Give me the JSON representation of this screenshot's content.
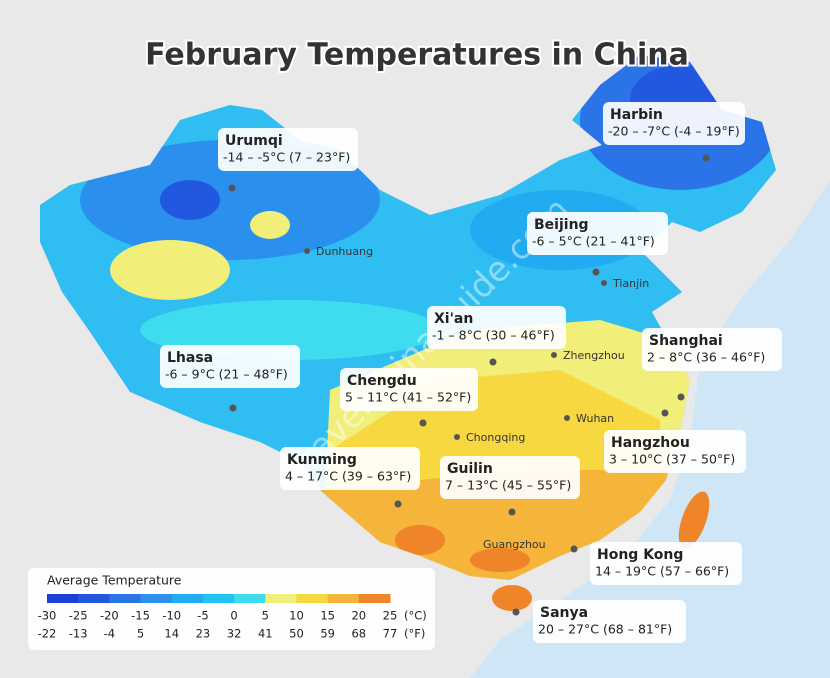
{
  "title": "February Temperatures in China",
  "watermark": "TravelChinaGuide.com",
  "cities": [
    {
      "name": "Urumqi",
      "temp": "-14 – -5°C (7 – 23°F)"
    },
    {
      "name": "Harbin",
      "temp": "-20 – -7°C (-4 – 19°F)"
    },
    {
      "name": "Beijing",
      "temp": "-6 – 5°C (21 – 41°F)"
    },
    {
      "name": "Xi'an",
      "temp": "-1 – 8°C (30 – 46°F)"
    },
    {
      "name": "Shanghai",
      "temp": "2 – 8°C (36 – 46°F)"
    },
    {
      "name": "Lhasa",
      "temp": "-6 – 9°C (21 – 48°F)"
    },
    {
      "name": "Chengdu",
      "temp": "5 – 11°C (41 – 52°F)"
    },
    {
      "name": "Hangzhou",
      "temp": "3 – 10°C (37 – 50°F)"
    },
    {
      "name": "Kunming",
      "temp": "4 – 17°C (39 – 63°F)"
    },
    {
      "name": "Guilin",
      "temp": "7 – 13°C (45 – 55°F)"
    },
    {
      "name": "Hong Kong",
      "temp": "14 – 19°C (57 – 66°F)"
    },
    {
      "name": "Sanya",
      "temp": "20 – 27°C (68 – 81°F)"
    }
  ],
  "places": [
    "Dunhuang",
    "Tianjin",
    "Zhengzhou",
    "Wuhan",
    "Chongqing",
    "Guangzhou"
  ],
  "legend": {
    "title": "Average Temperature",
    "celsius": [
      -30,
      -25,
      -20,
      -15,
      -10,
      -5,
      0,
      5,
      10,
      15,
      20,
      25
    ],
    "fahrenheit": [
      -22,
      -13,
      -4,
      5,
      14,
      23,
      32,
      41,
      50,
      59,
      68,
      77
    ],
    "celsius_unit": "(°C)",
    "fahrenheit_unit": "(°F)",
    "colors": [
      "#1b3fd8",
      "#2258e0",
      "#2b74e8",
      "#2b90ee",
      "#21abf1",
      "#1fc4f3",
      "#3fdcf0",
      "#f2ee7a",
      "#f8d840",
      "#f5b53a",
      "#ef8528"
    ]
  }
}
